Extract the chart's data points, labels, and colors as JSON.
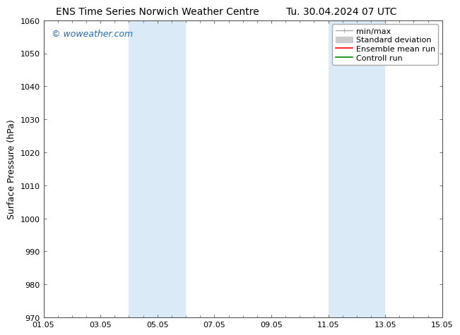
{
  "title": "ENS Time Series Norwich Weather Centre      Tu. 30.04.2024 07 UTC",
  "title_left": "ENS Time Series Norwich Weather Centre",
  "title_right": "Tu. 30.04.2024 07 UTC",
  "ylabel": "Surface Pressure (hPa)",
  "ylim": [
    970,
    1060
  ],
  "yticks": [
    970,
    980,
    990,
    1000,
    1010,
    1020,
    1030,
    1040,
    1050,
    1060
  ],
  "xtick_labels": [
    "01.05",
    "03.05",
    "05.05",
    "07.05",
    "09.05",
    "11.05",
    "13.05",
    "15.05"
  ],
  "xtick_positions": [
    0,
    2,
    4,
    6,
    8,
    10,
    12,
    14
  ],
  "xlim": [
    0,
    14
  ],
  "shaded_regions": [
    {
      "x_start": 3.0,
      "x_end": 4.0,
      "color": "#daeaf6"
    },
    {
      "x_start": 4.0,
      "x_end": 5.0,
      "color": "#daeaf6"
    },
    {
      "x_start": 10.0,
      "x_end": 11.0,
      "color": "#daeaf6"
    },
    {
      "x_start": 11.0,
      "x_end": 12.0,
      "color": "#daeaf6"
    }
  ],
  "watermark": "© woweather.com",
  "watermark_color": "#1e6bb8",
  "bg_color": "#ffffff",
  "plot_bg_color": "#ffffff",
  "legend_items": [
    {
      "label": "min/max",
      "color": "#aaaaaa",
      "lw": 1.0
    },
    {
      "label": "Standard deviation",
      "color": "#cccccc",
      "lw": 5
    },
    {
      "label": "Ensemble mean run",
      "color": "#ff0000",
      "lw": 1.2
    },
    {
      "label": "Controll run",
      "color": "#008000",
      "lw": 1.2
    }
  ],
  "title_fontsize": 10,
  "tick_fontsize": 8,
  "legend_fontsize": 8,
  "ylabel_fontsize": 9,
  "watermark_fontsize": 9
}
